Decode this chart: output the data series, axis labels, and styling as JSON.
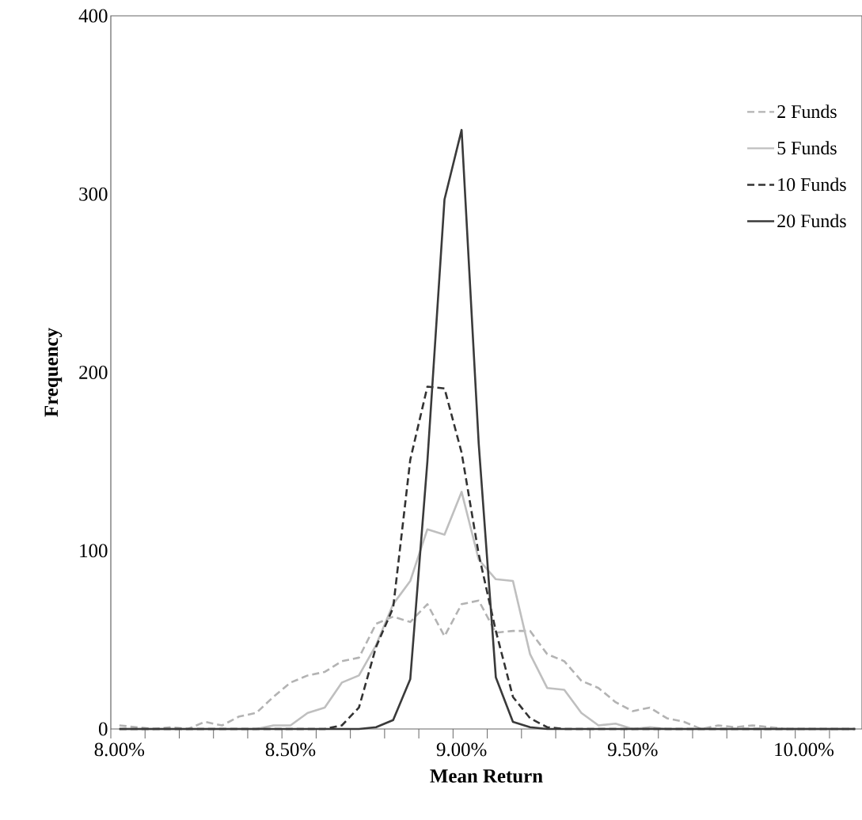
{
  "chart_data": {
    "type": "line",
    "xlabel": "Mean Return",
    "ylabel": "Frequency",
    "x": [
      8.0,
      8.05,
      8.1,
      8.15,
      8.2,
      8.25,
      8.3,
      8.35,
      8.4,
      8.45,
      8.5,
      8.55,
      8.6,
      8.65,
      8.7,
      8.75,
      8.8,
      8.85,
      8.9,
      8.95,
      9.0,
      9.05,
      9.1,
      9.15,
      9.2,
      9.25,
      9.3,
      9.35,
      9.4,
      9.45,
      9.5,
      9.55,
      9.6,
      9.65,
      9.7,
      9.75,
      9.8,
      9.85,
      9.9,
      9.95,
      10.0,
      10.05,
      10.1,
      10.15
    ],
    "series": [
      {
        "name": "2 Funds",
        "color": "#b3b3b3",
        "line_style": "dashed",
        "values": [
          2,
          1,
          0,
          1,
          0,
          4,
          2,
          7,
          9,
          18,
          26,
          30,
          32,
          38,
          40,
          59,
          63,
          60,
          70,
          52,
          70,
          72,
          54,
          55,
          55,
          42,
          38,
          27,
          23,
          15,
          10,
          12,
          6,
          4,
          0,
          2,
          1,
          2,
          1,
          0,
          0,
          0,
          0,
          0
        ]
      },
      {
        "name": "5 Funds",
        "color": "#bfbfbf",
        "line_style": "solid",
        "values": [
          0,
          0,
          0,
          0,
          0,
          0,
          0,
          0,
          0,
          2,
          2,
          9,
          12,
          26,
          30,
          47,
          70,
          83,
          112,
          109,
          133,
          95,
          84,
          83,
          42,
          23,
          22,
          9,
          2,
          3,
          0,
          1,
          0,
          0,
          0,
          0,
          0,
          0,
          0,
          0,
          0,
          0,
          0,
          0
        ]
      },
      {
        "name": "10 Funds",
        "color": "#333333",
        "line_style": "dashed",
        "values": [
          0,
          0,
          0,
          0,
          0,
          0,
          0,
          0,
          0,
          0,
          0,
          0,
          0,
          2,
          12,
          46,
          68,
          151,
          192,
          191,
          155,
          98,
          55,
          18,
          6,
          1,
          0,
          0,
          0,
          0,
          0,
          0,
          0,
          0,
          0,
          0,
          0,
          0,
          0,
          0,
          0,
          0,
          0,
          0
        ]
      },
      {
        "name": "20 Funds",
        "color": "#3a3a3a",
        "line_style": "solid",
        "values": [
          0,
          0,
          0,
          0,
          0,
          0,
          0,
          0,
          0,
          0,
          0,
          0,
          0,
          0,
          0,
          1,
          5,
          28,
          150,
          297,
          336,
          160,
          29,
          4,
          1,
          0,
          0,
          0,
          0,
          0,
          0,
          0,
          0,
          0,
          0,
          0,
          0,
          0,
          0,
          0,
          0,
          0,
          0,
          0
        ]
      }
    ],
    "xlim": [
      7.975,
      10.17
    ],
    "ylim": [
      0,
      400
    ],
    "xticks": [
      {
        "value": 8.0,
        "label": "8.00%"
      },
      {
        "value": 8.5,
        "label": "8.50%"
      },
      {
        "value": 9.0,
        "label": "9.00%"
      },
      {
        "value": 9.5,
        "label": "9.50%"
      },
      {
        "value": 10.0,
        "label": "10.00%"
      },
      {
        "value": 7.975,
        "label": null
      },
      {
        "value": 8.075,
        "label": null
      },
      {
        "value": 8.175,
        "label": null
      },
      {
        "value": 8.275,
        "label": null
      },
      {
        "value": 8.375,
        "label": null
      },
      {
        "value": 8.475,
        "label": null
      },
      {
        "value": 8.575,
        "label": null
      },
      {
        "value": 8.675,
        "label": null
      },
      {
        "value": 8.775,
        "label": null
      },
      {
        "value": 8.875,
        "label": null
      },
      {
        "value": 8.975,
        "label": null
      },
      {
        "value": 9.075,
        "label": null
      },
      {
        "value": 9.175,
        "label": null
      },
      {
        "value": 9.275,
        "label": null
      },
      {
        "value": 9.375,
        "label": null
      },
      {
        "value": 9.475,
        "label": null
      },
      {
        "value": 9.575,
        "label": null
      },
      {
        "value": 9.675,
        "label": null
      },
      {
        "value": 9.775,
        "label": null
      },
      {
        "value": 9.875,
        "label": null
      },
      {
        "value": 9.975,
        "label": null
      },
      {
        "value": 10.075,
        "label": null
      }
    ],
    "yticks": [
      0,
      100,
      200,
      300,
      400
    ],
    "grid": false,
    "legend": "top right",
    "marker": "none"
  }
}
